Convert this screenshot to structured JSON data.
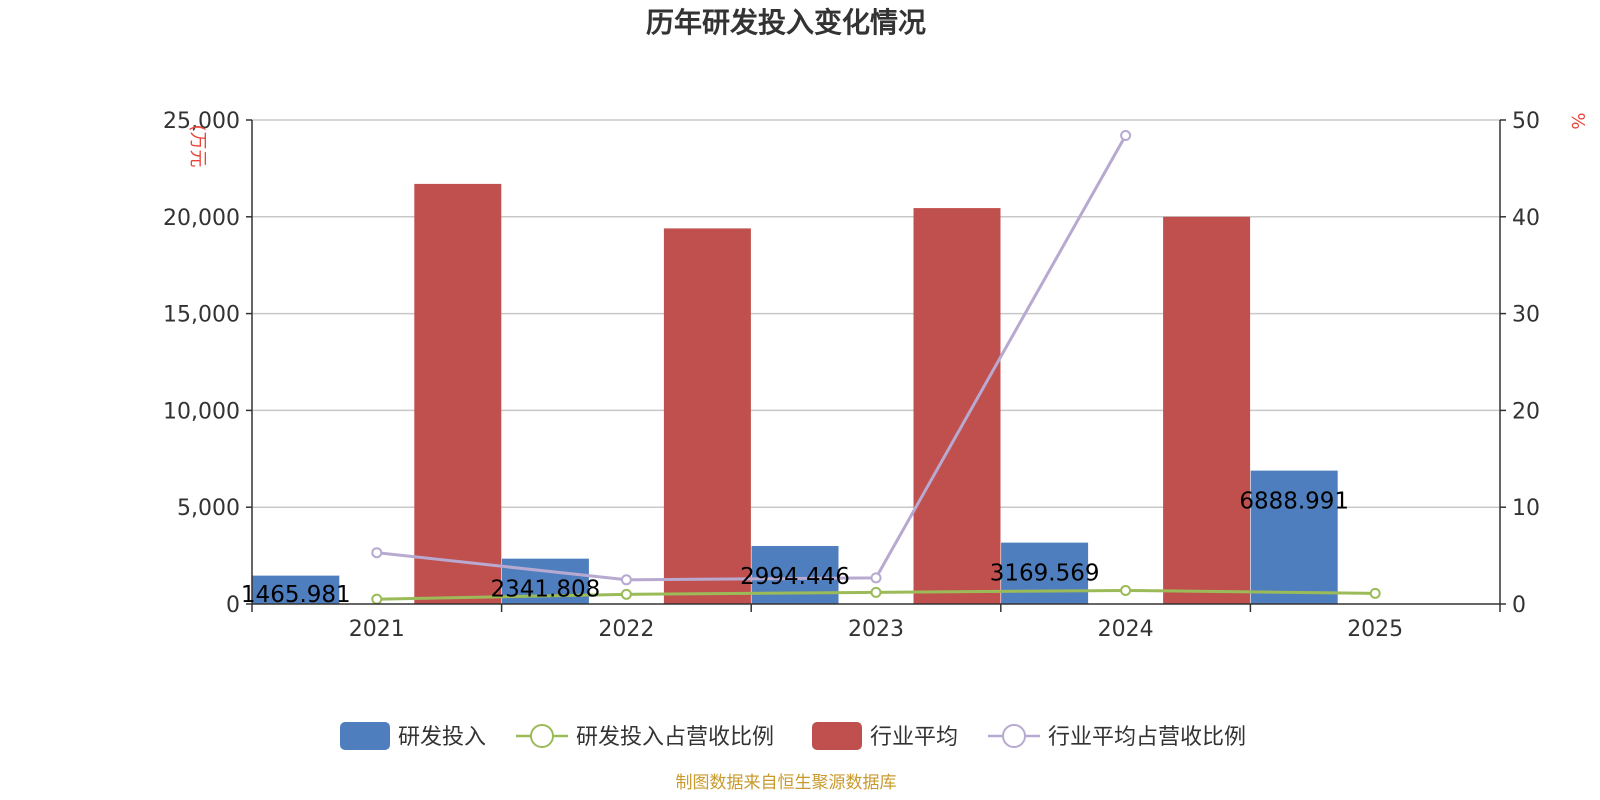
{
  "chart_data": {
    "type": "bar",
    "title": "历年研发投入变化情况",
    "categories": [
      "2021",
      "2022",
      "2023",
      "2024",
      "2025"
    ],
    "y_left": {
      "unit": "(万元",
      "ylim": [
        0,
        25000
      ],
      "ticks": [
        0,
        5000,
        10000,
        15000,
        20000,
        25000
      ],
      "tick_labels": [
        "0",
        "5,000",
        "10,000",
        "15,000",
        "20,000",
        "25,000"
      ]
    },
    "y_right": {
      "unit": "%",
      "ylim": [
        0,
        50
      ],
      "ticks": [
        0,
        10,
        20,
        30,
        40,
        50
      ],
      "tick_labels": [
        "0",
        "10",
        "20",
        "30",
        "40",
        "50"
      ]
    },
    "grid": true,
    "legend_position": "bottom",
    "series": [
      {
        "name": "研发投入",
        "type": "bar",
        "axis": "left",
        "color": "#4f7ebe",
        "values": [
          1465.981,
          2341.808,
          2994.446,
          3169.569,
          6888.991
        ],
        "labels": [
          "1465.981",
          "2341.808",
          "2994.446",
          "3169.569",
          "6888.991"
        ]
      },
      {
        "name": "研发投入占营收比例",
        "type": "line",
        "axis": "right",
        "color": "#9bbb59",
        "values": [
          0.5,
          1.0,
          1.2,
          1.4,
          1.1
        ]
      },
      {
        "name": "行业平均",
        "type": "bar",
        "axis": "left",
        "color": "#c0504d",
        "values": [
          21700,
          19400,
          20450,
          20000,
          null
        ]
      },
      {
        "name": "行业平均占营收比例",
        "type": "line",
        "axis": "right",
        "color": "#b7a9d0",
        "values": [
          5.3,
          2.5,
          2.7,
          48.4,
          null
        ]
      }
    ]
  },
  "source": "制图数据来自恒生聚源数据库"
}
